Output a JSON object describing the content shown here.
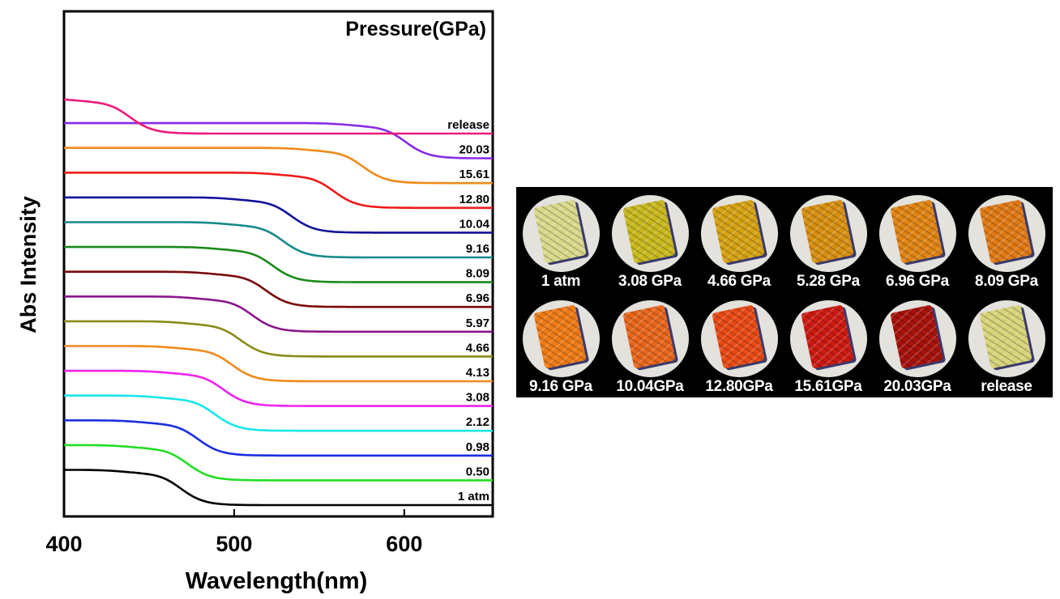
{
  "chart_data": {
    "type": "line",
    "title": "Pressure(GPa)",
    "xlabel": "Wavelength(nm)",
    "ylabel": "Abs Intensity",
    "xlim": [
      400,
      652
    ],
    "x_ticks": [
      "400",
      "500",
      "600"
    ],
    "y_ticks_shown": false,
    "grid": false,
    "series": [
      {
        "name": "1 atm",
        "color": "#000000",
        "pre": 0.72,
        "post": 0.08,
        "edge": 468
      },
      {
        "name": "0.50",
        "color": "#22dd22",
        "pre": 0.72,
        "post": 0.08,
        "edge": 472
      },
      {
        "name": "0.98",
        "color": "#1a2ee0",
        "pre": 0.72,
        "post": 0.08,
        "edge": 478
      },
      {
        "name": "2.12",
        "color": "#1ae6e6",
        "pre": 0.72,
        "post": 0.08,
        "edge": 488
      },
      {
        "name": "3.08",
        "color": "#ee22ee",
        "pre": 0.72,
        "post": 0.08,
        "edge": 493
      },
      {
        "name": "4.13",
        "color": "#f08a1a",
        "pre": 0.72,
        "post": 0.08,
        "edge": 498
      },
      {
        "name": "4.66",
        "color": "#8a8a16",
        "pre": 0.72,
        "post": 0.08,
        "edge": 503
      },
      {
        "name": "5.97",
        "color": "#8a168a",
        "pre": 0.72,
        "post": 0.08,
        "edge": 510
      },
      {
        "name": "6.96",
        "color": "#7a0a0a",
        "pre": 0.72,
        "post": 0.08,
        "edge": 518
      },
      {
        "name": "8.09",
        "color": "#1a8a1a",
        "pre": 0.72,
        "post": 0.08,
        "edge": 522
      },
      {
        "name": "9.16",
        "color": "#168a8a",
        "pre": 0.72,
        "post": 0.08,
        "edge": 528
      },
      {
        "name": "10.04",
        "color": "#12129a",
        "pre": 0.72,
        "post": 0.08,
        "edge": 533
      },
      {
        "name": "12.80",
        "color": "#ee1a1a",
        "pre": 0.72,
        "post": 0.08,
        "edge": 558
      },
      {
        "name": "15.61",
        "color": "#f08a1a",
        "pre": 0.72,
        "post": 0.08,
        "edge": 575
      },
      {
        "name": "20.03",
        "color": "#8a2ae6",
        "pre": 0.72,
        "post": 0.08,
        "edge": 600
      },
      {
        "name": "release",
        "color": "#ee1a7a",
        "pre": 0.72,
        "post": 0.08,
        "edge": 438
      }
    ]
  },
  "photos": [
    {
      "label": "1 atm",
      "color": "#d9d98c"
    },
    {
      "label": "3.08 GPa",
      "color": "#c8b81e"
    },
    {
      "label": "4.66 GPa",
      "color": "#d6a214"
    },
    {
      "label": "5.28 GPa",
      "color": "#d89012"
    },
    {
      "label": "6.96 GPa",
      "color": "#e08414"
    },
    {
      "label": "8.09 GPa",
      "color": "#e07a16"
    },
    {
      "label": "9.16 GPa",
      "color": "#ee7a16"
    },
    {
      "label": "10.04GPa",
      "color": "#e8661a"
    },
    {
      "label": "12.80GPa",
      "color": "#e84a14"
    },
    {
      "label": "15.61GPa",
      "color": "#cc1a12"
    },
    {
      "label": "20.03GPa",
      "color": "#a8120c"
    },
    {
      "label": "release",
      "color": "#d8d47a"
    }
  ]
}
